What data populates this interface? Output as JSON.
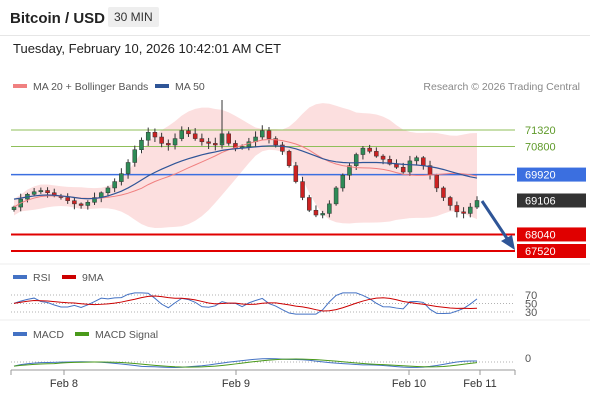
{
  "header": {
    "title": "Bitcoin / USD",
    "timeframe": "30 MIN"
  },
  "timestamp": "Tuesday, February 10, 2026 10:42:01 AM CET",
  "legend": {
    "ma20_label": "MA 20 + Bollinger Bands",
    "ma50_label": "MA 50",
    "credit": "Research © 2026 Trading Central",
    "ma20_color": "#f08080",
    "ma50_color": "#2f5597"
  },
  "rsi_legend": {
    "rsi_label": "RSI",
    "ma_label": "9MA",
    "rsi_color": "#4472c4",
    "ma_color": "#cc0000"
  },
  "macd_legend": {
    "macd_label": "MACD",
    "signal_label": "MACD Signal",
    "macd_color": "#4472c4",
    "signal_color": "#4a9a1a"
  },
  "chart_data": {
    "type": "candlestick",
    "title": "Bitcoin / USD",
    "timeframe": "30 MIN",
    "x_ticks": [
      "Feb 8",
      "Feb 9",
      "Feb 10",
      "Feb 11"
    ],
    "y_range": [
      67300,
      72000
    ],
    "levels": [
      {
        "value": 71320,
        "label": "71320",
        "kind": "resistance",
        "color": "#8fbf5a"
      },
      {
        "value": 70800,
        "label": "70800",
        "kind": "resistance",
        "color": "#8fbf5a"
      },
      {
        "value": 69920,
        "label": "69920",
        "kind": "pivot",
        "color": "#3b6fe0"
      },
      {
        "value": 69106,
        "label": "69106",
        "kind": "last_price",
        "color": "#333333"
      },
      {
        "value": 68040,
        "label": "68040",
        "kind": "support",
        "color": "#e00000"
      },
      {
        "value": 67520,
        "label": "67520",
        "kind": "support",
        "color": "#e00000"
      }
    ],
    "close_series": [
      68900,
      69150,
      69300,
      69380,
      69420,
      69350,
      69250,
      69200,
      69100,
      69000,
      68950,
      69050,
      69200,
      69350,
      69500,
      69700,
      69950,
      70300,
      70700,
      71000,
      71250,
      71100,
      70900,
      70850,
      71050,
      71300,
      71200,
      71050,
      70950,
      70900,
      70850,
      71200,
      70900,
      70750,
      70800,
      70950,
      71100,
      71300,
      71050,
      70850,
      70650,
      70200,
      69700,
      69200,
      68800,
      68650,
      68700,
      69000,
      69500,
      69900,
      70200,
      70550,
      70750,
      70650,
      70500,
      70400,
      70250,
      70150,
      70000,
      70350,
      70450,
      70200,
      69900,
      69500,
      69200,
      68950,
      68750,
      68700,
      68900,
      69106
    ],
    "ma50_series": [
      69150,
      69180,
      69220,
      69250,
      69270,
      69280,
      69270,
      69250,
      69230,
      69200,
      69170,
      69160,
      69170,
      69200,
      69250,
      69320,
      69400,
      69500,
      69620,
      69750,
      69880,
      69990,
      70090,
      70180,
      70270,
      70350,
      70420,
      70480,
      70540,
      70590,
      70630,
      70680,
      70710,
      70730,
      70750,
      70770,
      70790,
      70810,
      70820,
      70820,
      70810,
      70780,
      70730,
      70660,
      70580,
      70500,
      70420,
      70360,
      70320,
      70300,
      70290,
      70290,
      70300,
      70300,
      70300,
      70290,
      70280,
      70260,
      70240,
      70230,
      70220,
      70200,
      70170,
      70130,
      70080,
      70020,
      69960,
      69900,
      69850,
      69810
    ],
    "rsi": {
      "levels": [
        70,
        50,
        30
      ],
      "last": 45
    },
    "macd": {
      "zero_label": "0"
    }
  }
}
